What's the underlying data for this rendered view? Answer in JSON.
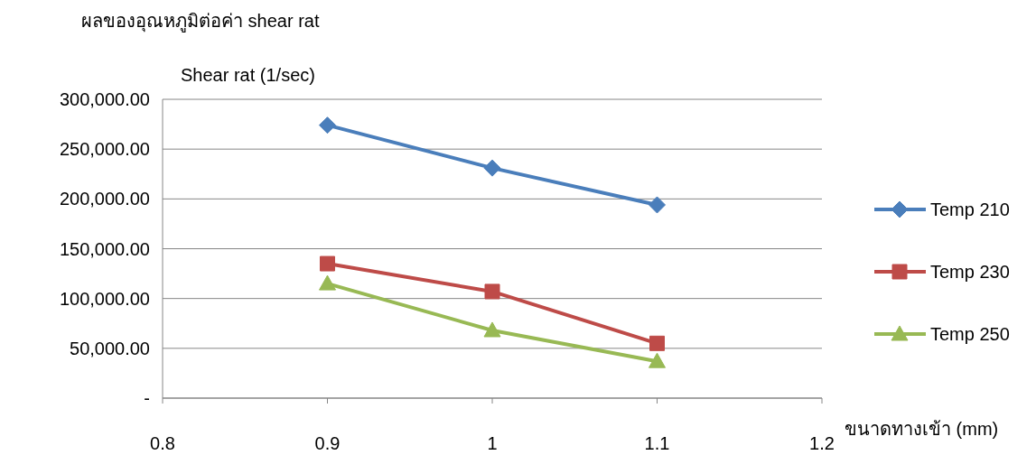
{
  "chart_data": {
    "type": "line",
    "title": "ผลของอุณหภูมิต่อค่า shear rat",
    "ylabel": "Shear rat (1/sec)",
    "xlabel": "ขนาดทางเข้า (mm)",
    "x": [
      0.9,
      1,
      1.1
    ],
    "series": [
      {
        "name": "Temp 210",
        "color": "#4a7ebb",
        "marker": "diamond",
        "values": [
          274000,
          231000,
          194000
        ]
      },
      {
        "name": "Temp 230",
        "color": "#be4b48",
        "marker": "square",
        "values": [
          135000,
          107000,
          55000
        ]
      },
      {
        "name": "Temp 250",
        "color": "#98b954",
        "marker": "triangle",
        "values": [
          115000,
          68000,
          37000
        ]
      }
    ],
    "xlim": [
      0.8,
      1.2
    ],
    "xticks": [
      0.8,
      0.9,
      1,
      1.1,
      1.2
    ],
    "ylim": [
      0,
      300000
    ],
    "yticks": [
      {
        "value": 0,
        "label": "-"
      },
      {
        "value": 50000,
        "label": "50,000.00"
      },
      {
        "value": 100000,
        "label": "100,000.00"
      },
      {
        "value": 150000,
        "label": "150,000.00"
      },
      {
        "value": 200000,
        "label": "200,000.00"
      },
      {
        "value": 250000,
        "label": "250,000.00"
      },
      {
        "value": 300000,
        "label": "300,000.00"
      }
    ],
    "grid": "y",
    "legend": "right"
  }
}
